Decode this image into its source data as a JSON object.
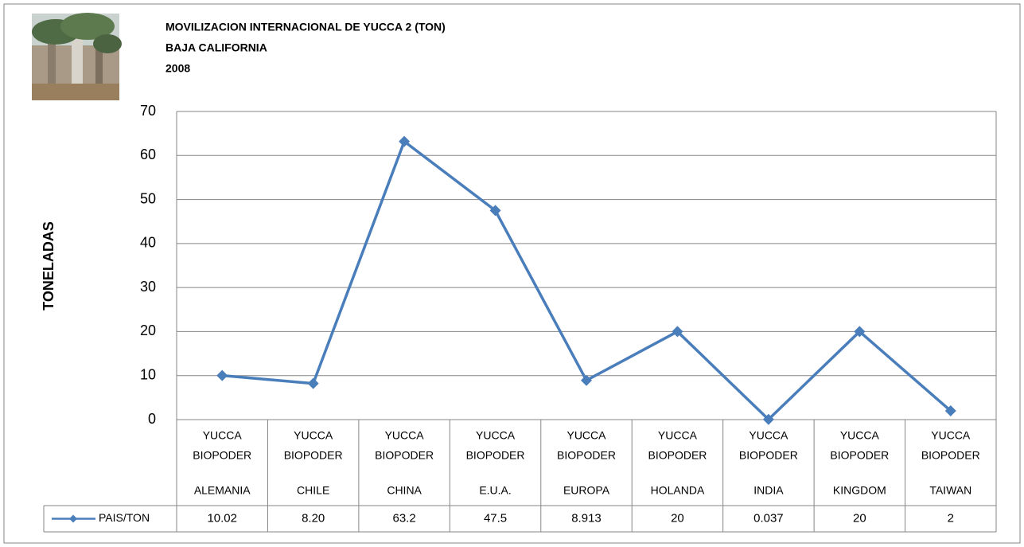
{
  "chart_data": {
    "type": "line",
    "title": [
      "MOVILIZACION  INTERNACIONAL DE YUCCA 2 (TON)",
      "BAJA CALIFORNIA",
      "2008"
    ],
    "ylabel": "TONELADAS",
    "categories": [
      [
        "YUCCA",
        "BIOPODER",
        "ALEMANIA"
      ],
      [
        "YUCCA",
        "BIOPODER",
        "CHILE"
      ],
      [
        "YUCCA",
        "BIOPODER",
        "CHINA"
      ],
      [
        "YUCCA",
        "BIOPODER",
        "E.U.A."
      ],
      [
        "YUCCA",
        "BIOPODER",
        "EUROPA"
      ],
      [
        "YUCCA",
        "BIOPODER",
        "HOLANDA"
      ],
      [
        "YUCCA",
        "BIOPODER",
        "INDIA"
      ],
      [
        "YUCCA",
        "BIOPODER",
        "KINGDOM"
      ],
      [
        "YUCCA",
        "BIOPODER",
        "TAIWAN"
      ]
    ],
    "series": [
      {
        "name": "PAIS/TON",
        "color": "#4a7ebb",
        "values": [
          10.02,
          8.2,
          63.2,
          47.5,
          8.913,
          20,
          0.037,
          20,
          2
        ],
        "value_labels": [
          "10.02",
          "8.20",
          "63.2",
          "47.5",
          "8.913",
          "20",
          "0.037",
          "20",
          "2"
        ]
      }
    ],
    "ylim": [
      0,
      70
    ],
    "yticks": [
      0,
      10,
      20,
      30,
      40,
      50,
      60,
      70
    ],
    "grid": true,
    "data_table": true
  }
}
